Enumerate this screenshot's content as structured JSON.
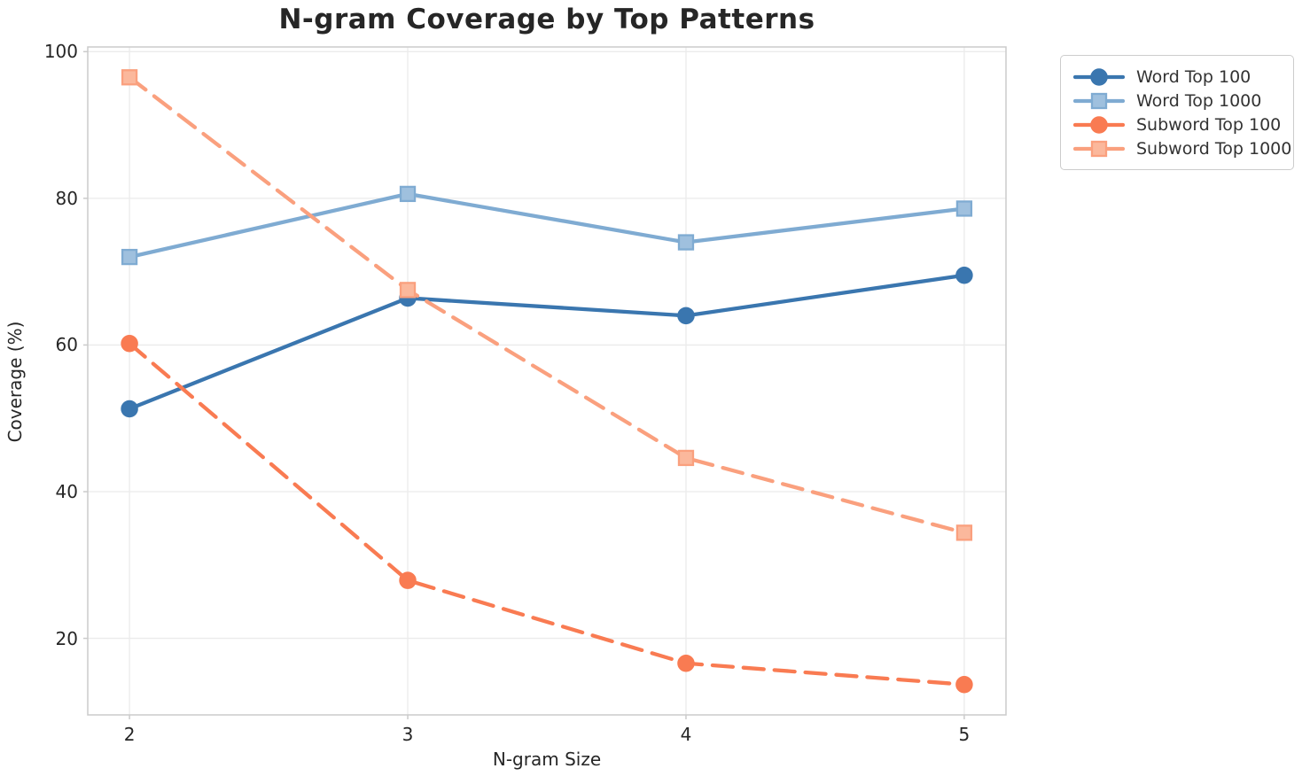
{
  "chart_data": {
    "type": "line",
    "title": "N-gram Coverage by Top Patterns",
    "xlabel": "N-gram Size",
    "ylabel": "Coverage (%)",
    "x": [
      2,
      3,
      4,
      5
    ],
    "xticklabels": [
      "2",
      "3",
      "4",
      "5"
    ],
    "yticks": [
      20,
      40,
      60,
      80,
      100
    ],
    "yticklabels": [
      "20",
      "40",
      "60",
      "80",
      "100"
    ],
    "xlim": [
      1.85,
      5.15
    ],
    "ylim": [
      9.56,
      100.64
    ],
    "grid": true,
    "legend_position": "outside-top-right",
    "series": [
      {
        "name": "Word Top 100",
        "values": [
          51.3,
          66.4,
          64.0,
          69.5
        ],
        "color": "#3A76AF",
        "marker_fill": "#3A76AF",
        "marker": "circle",
        "linestyle": "solid"
      },
      {
        "name": "Word Top 1000",
        "values": [
          72.0,
          80.6,
          74.0,
          78.6
        ],
        "color": "#7FABD2",
        "marker_fill": "#9FC0DE",
        "marker": "square",
        "linestyle": "solid"
      },
      {
        "name": "Subword Top 100",
        "values": [
          60.2,
          27.9,
          16.6,
          13.7
        ],
        "color": "#F97B52",
        "marker_fill": "#F97B52",
        "marker": "circle",
        "linestyle": "dashed"
      },
      {
        "name": "Subword Top 1000",
        "values": [
          96.5,
          67.5,
          44.6,
          34.4
        ],
        "color": "#FAA07E",
        "marker_fill": "#FBB89C",
        "marker": "square",
        "linestyle": "dashed"
      }
    ],
    "style": {
      "grid_color": "#ebebeb",
      "axis_color": "#cbcbcb",
      "text_color": "#262626"
    }
  }
}
